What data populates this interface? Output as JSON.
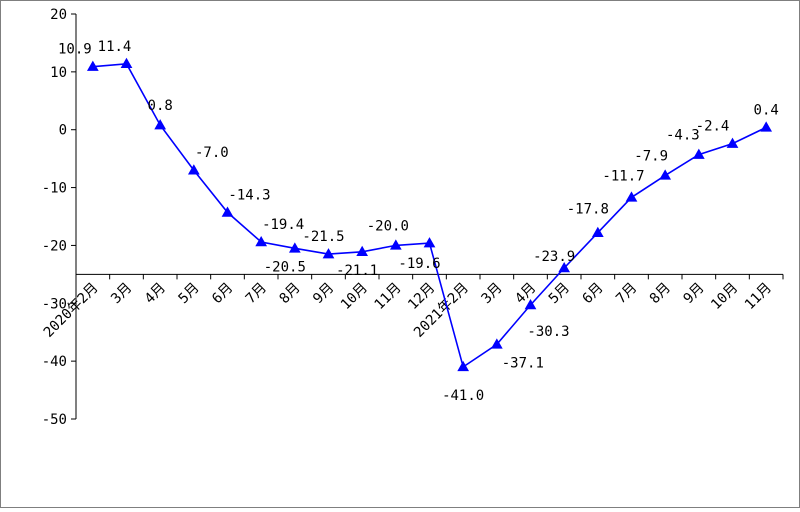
{
  "chart_data": {
    "type": "line",
    "title": "",
    "xlabel": "",
    "ylabel": "",
    "ylim": [
      -50,
      20
    ],
    "yticks": [
      20,
      10,
      0,
      -10,
      -20,
      -30,
      -40,
      -50
    ],
    "grid": false,
    "legend": "none",
    "categories": [
      "2020年2月",
      "3月",
      "4月",
      "5月",
      "6月",
      "7月",
      "8月",
      "9月",
      "10月",
      "11月",
      "12月",
      "2021年2月",
      "3月",
      "4月",
      "5月",
      "6月",
      "7月",
      "8月",
      "9月",
      "10月",
      "11月"
    ],
    "series": [
      {
        "values": [
          10.9,
          11.4,
          0.8,
          -7.0,
          -14.3,
          -19.4,
          -20.5,
          -21.5,
          -21.1,
          -20.0,
          -19.6,
          -41.0,
          -37.1,
          -30.3,
          -23.9,
          -17.8,
          -11.7,
          -7.9,
          -4.3,
          -2.4,
          0.4
        ],
        "labels": [
          "10.9",
          "11.4",
          "0.8",
          "-7.0",
          "-14.3",
          "-19.4",
          "-20.5",
          "-21.5",
          "-21.1",
          "-20.0",
          "-19.6",
          "-41.0",
          "-37.1",
          "-30.3",
          "-23.9",
          "-17.8",
          "-11.7",
          "-7.9",
          "-4.3",
          "-2.4",
          "0.4"
        ],
        "color": "#0000ff",
        "marker": "triangle"
      }
    ],
    "category_axis_at": -25
  }
}
